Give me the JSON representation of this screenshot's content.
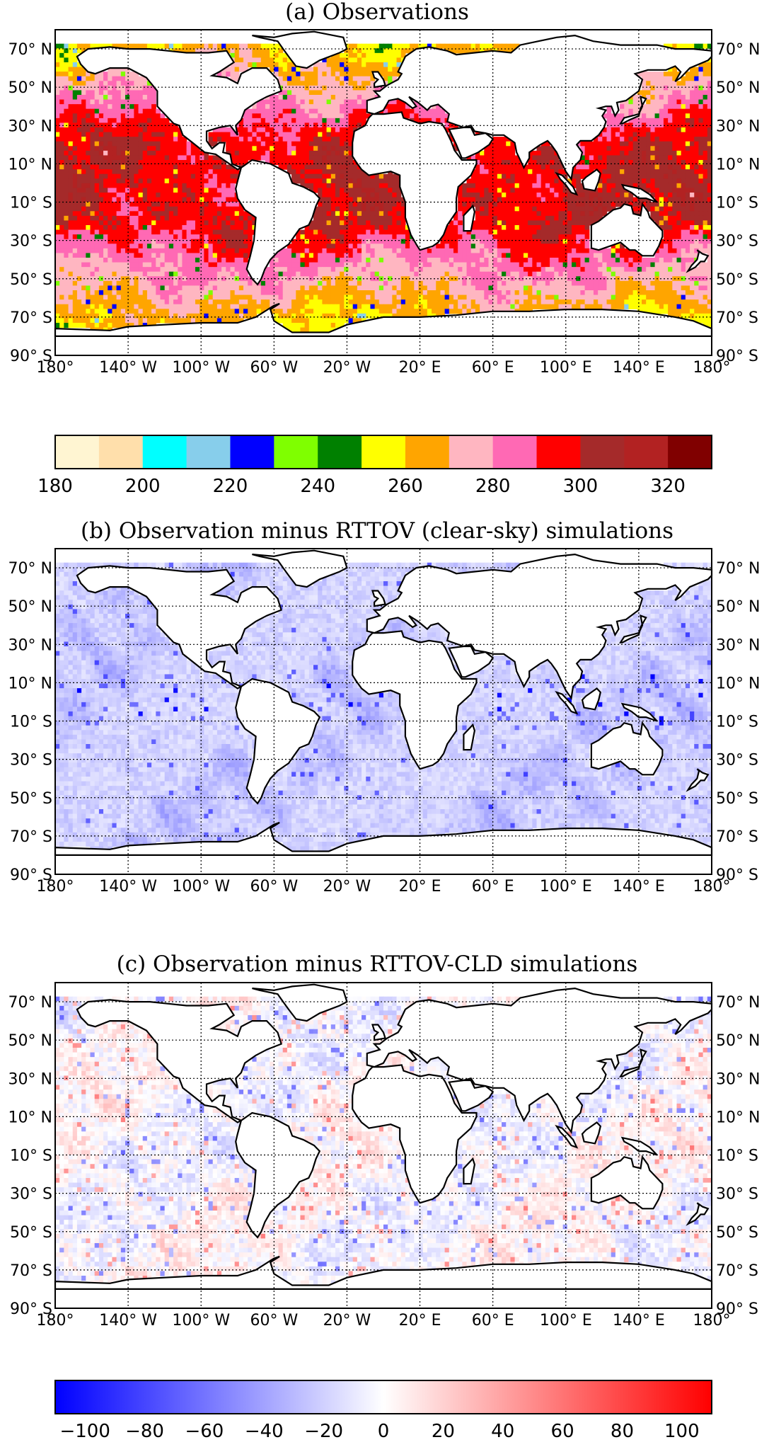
{
  "panels": [
    {
      "title": "(a) Observations",
      "mode": "obs"
    },
    {
      "title": "(b) Observation minus RTTOV (clear-sky) simulations",
      "mode": "bluediff"
    },
    {
      "title": "(c) Observation minus RTTOV-CLD simulations",
      "mode": "mixdiff"
    }
  ],
  "map_axes": {
    "lat_labels_left": [
      "70° N",
      "50° N",
      "30° N",
      "10° N",
      "10° S",
      "30° S",
      "50° S",
      "70° S",
      "90° S"
    ],
    "lat_labels_right": [
      "70° N",
      "50° N",
      "30° N",
      "10° N",
      "10° S",
      "30° S",
      "50° S",
      "70° S",
      "90° S"
    ],
    "lon_labels": [
      "180°",
      "140° W",
      "100° W",
      "60° W",
      "20° W",
      "20° E",
      "60° E",
      "100° E",
      "140° E",
      "180°"
    ]
  },
  "colorbar_top": {
    "ticks": [
      "180",
      "200",
      "220",
      "240",
      "260",
      "280",
      "300",
      "320"
    ],
    "range": [
      180,
      330
    ],
    "bin_colors": [
      "#fff5d2",
      "#ffdfab",
      "#00ffff",
      "#87ceeb",
      "#0000ff",
      "#7fff00",
      "#008000",
      "#ffff00",
      "#ffa500",
      "#ffb6c1",
      "#ff69b4",
      "#ff0000",
      "#a52a2a",
      "#b22222",
      "#800000"
    ]
  },
  "colorbar_bottom": {
    "ticks": [
      "−100",
      "−80",
      "−60",
      "−40",
      "−20",
      "0",
      "20",
      "40",
      "60",
      "80",
      "100"
    ],
    "range": [
      -110,
      110
    ],
    "colors": [
      "#0000ff",
      "#ffffff",
      "#ff0000"
    ]
  },
  "colors": {
    "land": "#ffffff",
    "coast": "#000000",
    "grid": "#000000"
  }
}
